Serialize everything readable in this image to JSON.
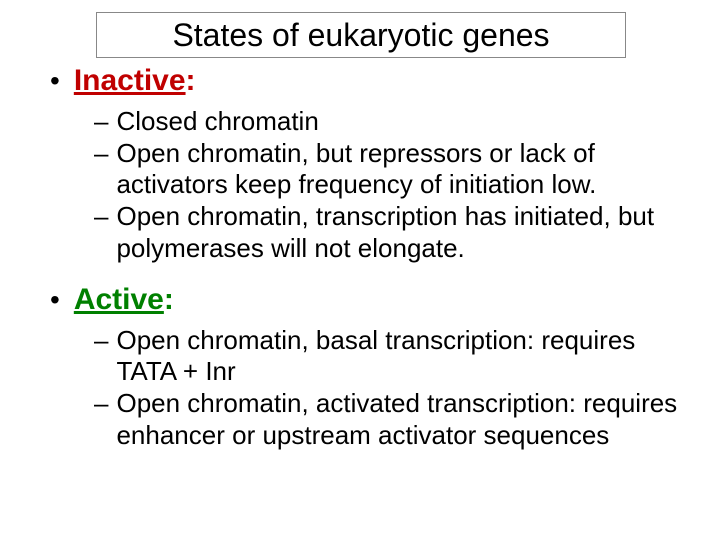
{
  "title": "States of eukaryotic genes",
  "colors": {
    "inactive_color": "#c00000",
    "active_color": "#008000",
    "text_color": "#000000",
    "border_color": "#888888",
    "background": "#ffffff"
  },
  "typography": {
    "title_fontsize": 32,
    "main_fontsize": 30,
    "sub_fontsize": 26,
    "font_family": "Arial"
  },
  "sections": [
    {
      "label": "Inactive",
      "color": "#c00000",
      "items": [
        "Closed chromatin",
        "Open chromatin, but repressors or lack of activators keep frequency of initiation low.",
        "Open chromatin, transcription has initiated, but polymerases will not elongate."
      ]
    },
    {
      "label": "Active",
      "color": "#008000",
      "items": [
        "Open chromatin, basal transcription: requires TATA + Inr",
        "Open chromatin, activated transcription: requires enhancer or upstream activator sequences"
      ]
    }
  ]
}
